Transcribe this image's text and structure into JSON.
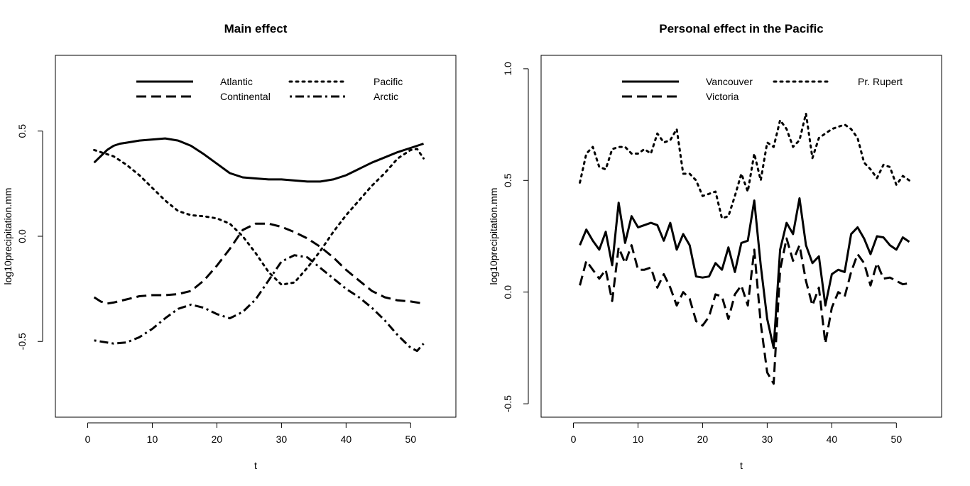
{
  "chart_data": [
    {
      "type": "line",
      "title": "Main effect",
      "xlabel": "t",
      "ylabel": "log10precipitation.mm",
      "xlim": [
        -5,
        57
      ],
      "ylim": [
        -0.86,
        0.86
      ],
      "xticks": [
        "0",
        "10",
        "20",
        "30",
        "40",
        "50"
      ],
      "yticks": [
        "-0.5",
        "0.0",
        "0.5"
      ],
      "legend": {
        "position": "top",
        "columns": 2
      },
      "series": [
        {
          "name": "Atlantic",
          "style": "solid",
          "x": [
            1,
            2,
            3,
            4,
            5,
            6,
            8,
            10,
            12,
            14,
            16,
            18,
            20,
            22,
            24,
            26,
            28,
            30,
            32,
            34,
            36,
            38,
            40,
            42,
            44,
            46,
            48,
            50,
            52
          ],
          "values": [
            0.35,
            0.38,
            0.41,
            0.43,
            0.44,
            0.445,
            0.455,
            0.46,
            0.465,
            0.455,
            0.43,
            0.39,
            0.345,
            0.3,
            0.28,
            0.275,
            0.27,
            0.27,
            0.265,
            0.26,
            0.26,
            0.27,
            0.29,
            0.32,
            0.35,
            0.375,
            0.4,
            0.42,
            0.44
          ]
        },
        {
          "name": "Continental",
          "style": "dashed",
          "x": [
            1,
            2,
            3,
            4,
            6,
            8,
            10,
            12,
            14,
            16,
            18,
            20,
            22,
            24,
            26,
            28,
            30,
            32,
            34,
            36,
            38,
            40,
            42,
            44,
            46,
            48,
            50,
            52
          ],
          "values": [
            -0.29,
            -0.31,
            -0.32,
            -0.315,
            -0.3,
            -0.285,
            -0.28,
            -0.28,
            -0.275,
            -0.26,
            -0.21,
            -0.14,
            -0.06,
            0.03,
            0.06,
            0.06,
            0.045,
            0.02,
            -0.01,
            -0.05,
            -0.1,
            -0.16,
            -0.21,
            -0.26,
            -0.29,
            -0.305,
            -0.31,
            -0.32
          ]
        },
        {
          "name": "Pacific",
          "style": "dotted",
          "x": [
            1,
            2,
            4,
            6,
            8,
            10,
            12,
            14,
            16,
            18,
            20,
            22,
            24,
            26,
            28,
            30,
            32,
            34,
            36,
            38,
            40,
            42,
            44,
            46,
            48,
            50,
            51,
            52
          ],
          "values": [
            0.41,
            0.4,
            0.38,
            0.34,
            0.29,
            0.23,
            0.17,
            0.12,
            0.1,
            0.095,
            0.085,
            0.06,
            0.0,
            -0.08,
            -0.17,
            -0.23,
            -0.22,
            -0.15,
            -0.07,
            0.02,
            0.1,
            0.17,
            0.24,
            0.3,
            0.37,
            0.41,
            0.415,
            0.37
          ]
        },
        {
          "name": "Arctic",
          "style": "dotdash",
          "x": [
            1,
            2,
            4,
            6,
            8,
            10,
            12,
            14,
            16,
            18,
            20,
            22,
            24,
            26,
            28,
            30,
            32,
            34,
            36,
            38,
            40,
            42,
            44,
            46,
            48,
            50,
            51,
            52
          ],
          "values": [
            -0.495,
            -0.5,
            -0.51,
            -0.505,
            -0.48,
            -0.44,
            -0.39,
            -0.345,
            -0.325,
            -0.34,
            -0.37,
            -0.39,
            -0.36,
            -0.3,
            -0.21,
            -0.12,
            -0.09,
            -0.1,
            -0.15,
            -0.2,
            -0.25,
            -0.29,
            -0.34,
            -0.4,
            -0.47,
            -0.53,
            -0.545,
            -0.51
          ]
        }
      ]
    },
    {
      "type": "line",
      "title": "Personal effect in the Pacific",
      "xlabel": "t",
      "ylabel": "log10precipitation.mm",
      "xlim": [
        -5,
        57
      ],
      "ylim": [
        -0.56,
        1.06
      ],
      "xticks": [
        "0",
        "10",
        "20",
        "30",
        "40",
        "50"
      ],
      "yticks": [
        "-0.5",
        "0.0",
        "0.5",
        "1.0"
      ],
      "legend": {
        "position": "top",
        "columns": 2
      },
      "series": [
        {
          "name": "Vancouver",
          "style": "solid",
          "x": [
            1,
            2,
            3,
            4,
            5,
            6,
            7,
            8,
            9,
            10,
            11,
            12,
            13,
            14,
            15,
            16,
            17,
            18,
            19,
            20,
            21,
            22,
            23,
            24,
            25,
            26,
            27,
            28,
            29,
            30,
            31,
            32,
            33,
            34,
            35,
            36,
            37,
            38,
            39,
            40,
            41,
            42,
            43,
            44,
            45,
            46,
            47,
            48,
            49,
            50,
            51,
            52
          ],
          "values": [
            0.21,
            0.28,
            0.23,
            0.19,
            0.27,
            0.12,
            0.4,
            0.22,
            0.34,
            0.29,
            0.3,
            0.31,
            0.3,
            0.23,
            0.31,
            0.19,
            0.26,
            0.21,
            0.07,
            0.065,
            0.07,
            0.13,
            0.1,
            0.2,
            0.09,
            0.22,
            0.23,
            0.41,
            0.12,
            -0.12,
            -0.25,
            0.19,
            0.31,
            0.26,
            0.42,
            0.21,
            0.13,
            0.16,
            -0.06,
            0.08,
            0.1,
            0.09,
            0.26,
            0.29,
            0.24,
            0.17,
            0.25,
            0.245,
            0.21,
            0.19,
            0.245,
            0.225
          ]
        },
        {
          "name": "Victoria",
          "style": "dashed",
          "x": [
            1,
            2,
            3,
            4,
            5,
            6,
            7,
            8,
            9,
            10,
            11,
            12,
            13,
            14,
            15,
            16,
            17,
            18,
            19,
            20,
            21,
            22,
            23,
            24,
            25,
            26,
            27,
            28,
            29,
            30,
            31,
            32,
            33,
            34,
            35,
            36,
            37,
            38,
            39,
            40,
            41,
            42,
            43,
            44,
            45,
            46,
            47,
            48,
            49,
            50,
            51,
            52
          ],
          "values": [
            0.03,
            0.14,
            0.1,
            0.06,
            0.1,
            -0.04,
            0.2,
            0.13,
            0.21,
            0.1,
            0.1,
            0.11,
            0.02,
            0.08,
            0.02,
            -0.06,
            0.0,
            -0.03,
            -0.13,
            -0.15,
            -0.11,
            -0.01,
            -0.02,
            -0.12,
            -0.01,
            0.03,
            -0.06,
            0.19,
            -0.14,
            -0.36,
            -0.41,
            0.1,
            0.24,
            0.14,
            0.21,
            0.05,
            -0.06,
            0.02,
            -0.23,
            -0.07,
            0.0,
            -0.02,
            0.09,
            0.17,
            0.13,
            0.03,
            0.13,
            0.06,
            0.065,
            0.05,
            0.035,
            0.04
          ]
        },
        {
          "name": "Pr. Rupert",
          "style": "dotted",
          "x": [
            1,
            2,
            3,
            4,
            5,
            6,
            7,
            8,
            9,
            10,
            11,
            12,
            13,
            14,
            15,
            16,
            17,
            18,
            19,
            20,
            21,
            22,
            23,
            24,
            25,
            26,
            27,
            28,
            29,
            30,
            31,
            32,
            33,
            34,
            35,
            36,
            37,
            38,
            39,
            40,
            41,
            42,
            43,
            44,
            45,
            46,
            47,
            48,
            49,
            50,
            51,
            52
          ],
          "values": [
            0.49,
            0.62,
            0.65,
            0.56,
            0.55,
            0.64,
            0.65,
            0.65,
            0.62,
            0.62,
            0.64,
            0.62,
            0.71,
            0.67,
            0.68,
            0.73,
            0.53,
            0.53,
            0.5,
            0.43,
            0.44,
            0.45,
            0.33,
            0.34,
            0.43,
            0.53,
            0.45,
            0.62,
            0.5,
            0.67,
            0.65,
            0.77,
            0.73,
            0.65,
            0.68,
            0.8,
            0.6,
            0.69,
            0.71,
            0.73,
            0.74,
            0.75,
            0.73,
            0.69,
            0.58,
            0.55,
            0.51,
            0.57,
            0.56,
            0.48,
            0.52,
            0.5
          ]
        }
      ]
    }
  ]
}
